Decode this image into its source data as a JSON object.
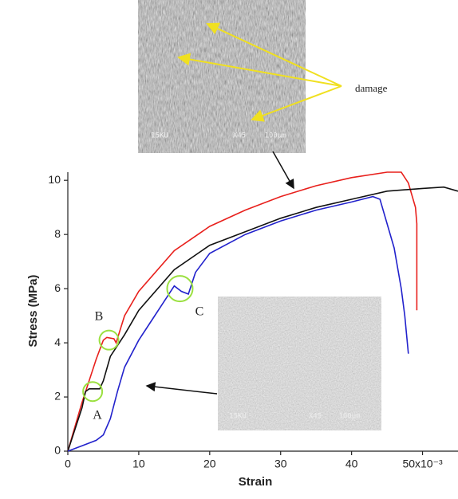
{
  "chart_data": {
    "type": "line",
    "xlabel": "Strain",
    "ylabel": "Stress (MPa)",
    "xlim": [
      0,
      55
    ],
    "ylim": [
      0,
      10.3
    ],
    "xticks": [
      0,
      10,
      20,
      30,
      40,
      {
        "value": 50,
        "label": "50x10⁻³"
      }
    ],
    "yticks": [
      0,
      2,
      4,
      6,
      8,
      10
    ],
    "grid": false,
    "annotations": [
      "damage",
      "A",
      "B",
      "C"
    ],
    "image_labels": [
      "15KU",
      "X45",
      "100μm"
    ],
    "series": [
      {
        "color": "#e8201c",
        "x": [
          0,
          2,
          4,
          5,
          5.5,
          6.5,
          6.8,
          8,
          10,
          15,
          20,
          25,
          30,
          35,
          40,
          45,
          47,
          48,
          49,
          49.2,
          49.2
        ],
        "values": [
          0,
          1.8,
          3.4,
          4.1,
          4.2,
          4.15,
          4.0,
          5.0,
          5.9,
          7.4,
          8.3,
          8.9,
          9.4,
          9.8,
          10.1,
          10.3,
          10.3,
          9.9,
          9.0,
          8.4,
          5.2
        ]
      },
      {
        "color": "#111111",
        "x": [
          0,
          1,
          2,
          2.5,
          3,
          4.5,
          5,
          6,
          8,
          10,
          15,
          20,
          25,
          30,
          35,
          40,
          45,
          50,
          53,
          55
        ],
        "values": [
          0,
          0.8,
          1.6,
          2.2,
          2.3,
          2.3,
          2.6,
          3.5,
          4.3,
          5.2,
          6.7,
          7.6,
          8.1,
          8.6,
          9.0,
          9.3,
          9.6,
          9.7,
          9.75,
          9.6
        ]
      },
      {
        "color": "#2222cc",
        "x": [
          0,
          2,
          4,
          5,
          6,
          7,
          8,
          10,
          12,
          14,
          15,
          16,
          17,
          18,
          20,
          25,
          30,
          35,
          40,
          43,
          44,
          46,
          47,
          47.5,
          48
        ],
        "values": [
          0,
          0.2,
          0.4,
          0.6,
          1.2,
          2.2,
          3.1,
          4.1,
          4.9,
          5.7,
          6.1,
          5.9,
          5.8,
          6.6,
          7.3,
          8.0,
          8.5,
          8.9,
          9.2,
          9.4,
          9.3,
          7.5,
          6.0,
          5.0,
          3.6
        ]
      }
    ]
  }
}
